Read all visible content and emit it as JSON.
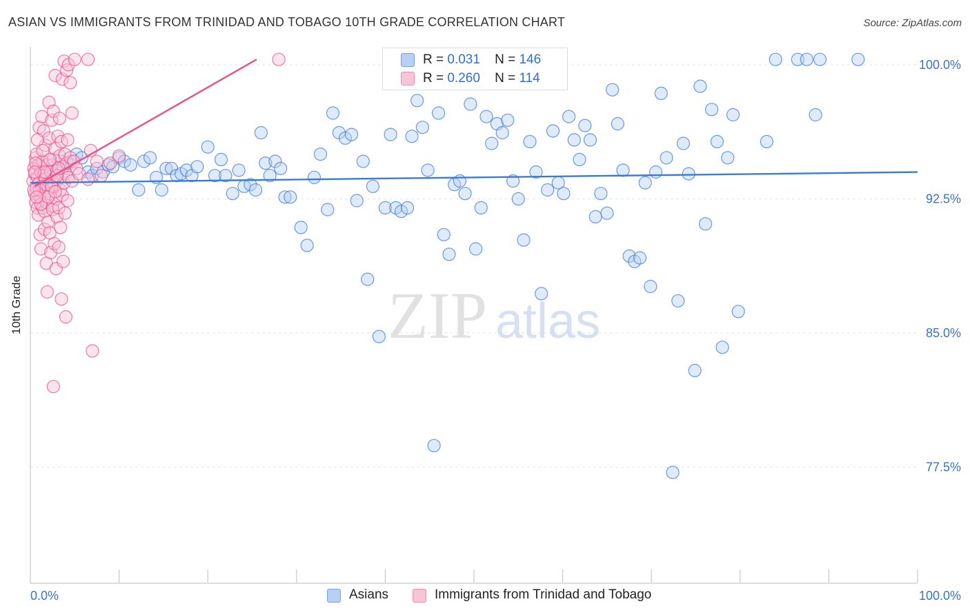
{
  "title": "ASIAN VS IMMIGRANTS FROM TRINIDAD AND TOBAGO 10TH GRADE CORRELATION CHART",
  "source": "Source: ZipAtlas.com",
  "watermark": {
    "zip": "ZIP",
    "atlas": "atlas"
  },
  "legend": {
    "r_label": "R =",
    "n_label": "N =",
    "items": [
      {
        "name": "Asians",
        "r": "0.031",
        "n": "146",
        "color": "#6fa3e8",
        "fill": "#b8d0f5"
      },
      {
        "name": "Immigrants from Trinidad and Tobago",
        "r": "0.260",
        "n": "114",
        "color": "#ef8fb0",
        "fill": "#f8c4d6"
      }
    ]
  },
  "chart_data": {
    "type": "scatter",
    "xlabel": "",
    "ylabel": "10th Grade",
    "xlim": [
      0,
      100
    ],
    "ylim": [
      71,
      101
    ],
    "x_tick_labels": [
      "0.0%",
      "100.0%"
    ],
    "y_ticks": [
      77.5,
      85.0,
      92.5,
      100.0
    ],
    "y_tick_labels": [
      "77.5%",
      "85.0%",
      "92.5%",
      "100.0%"
    ],
    "grid": true,
    "series": [
      {
        "name": "Asians",
        "color": "#3a7bd5",
        "fill": "#b8d0f5",
        "trend": {
          "x": [
            0,
            100
          ],
          "y": [
            93.4,
            94.0
          ]
        },
        "points": [
          [
            1.2,
            93.2
          ],
          [
            1.8,
            94.0
          ],
          [
            2.5,
            94.4
          ],
          [
            3.0,
            93.8
          ],
          [
            3.5,
            94.6
          ],
          [
            4.0,
            94.2
          ],
          [
            4.6,
            94.6
          ],
          [
            5.2,
            95.0
          ],
          [
            5.8,
            94.8
          ],
          [
            6.5,
            94.0
          ],
          [
            7.0,
            93.8
          ],
          [
            7.5,
            94.2
          ],
          [
            8.2,
            94.0
          ],
          [
            8.8,
            94.4
          ],
          [
            9.3,
            94.3
          ],
          [
            10.0,
            94.8
          ],
          [
            10.6,
            94.6
          ],
          [
            11.3,
            94.4
          ],
          [
            12.2,
            93.0
          ],
          [
            12.8,
            94.6
          ],
          [
            13.5,
            94.8
          ],
          [
            14.2,
            93.7
          ],
          [
            14.8,
            93.0
          ],
          [
            15.3,
            94.2
          ],
          [
            15.9,
            94.2
          ],
          [
            16.5,
            93.8
          ],
          [
            17.0,
            93.9
          ],
          [
            17.6,
            94.1
          ],
          [
            18.2,
            93.8
          ],
          [
            18.8,
            94.3
          ],
          [
            20.0,
            95.4
          ],
          [
            20.8,
            93.8
          ],
          [
            21.5,
            94.7
          ],
          [
            22.0,
            93.8
          ],
          [
            22.8,
            92.8
          ],
          [
            23.5,
            94.1
          ],
          [
            24.1,
            93.2
          ],
          [
            24.8,
            93.3
          ],
          [
            25.4,
            93.0
          ],
          [
            26.0,
            96.2
          ],
          [
            26.5,
            94.5
          ],
          [
            27.0,
            93.8
          ],
          [
            27.6,
            94.6
          ],
          [
            28.2,
            94.2
          ],
          [
            28.7,
            92.6
          ],
          [
            29.3,
            92.6
          ],
          [
            30.5,
            90.9
          ],
          [
            31.2,
            89.9
          ],
          [
            32.0,
            93.7
          ],
          [
            32.7,
            95.0
          ],
          [
            33.5,
            91.9
          ],
          [
            34.1,
            97.3
          ],
          [
            34.8,
            96.2
          ],
          [
            35.5,
            95.9
          ],
          [
            36.2,
            96.1
          ],
          [
            36.8,
            92.4
          ],
          [
            37.5,
            94.6
          ],
          [
            38.0,
            88.0
          ],
          [
            38.6,
            93.2
          ],
          [
            39.3,
            84.8
          ],
          [
            40.0,
            92.0
          ],
          [
            40.6,
            96.1
          ],
          [
            41.2,
            92.0
          ],
          [
            41.8,
            91.8
          ],
          [
            42.5,
            92.0
          ],
          [
            43.0,
            96.0
          ],
          [
            43.6,
            98.0
          ],
          [
            44.2,
            96.5
          ],
          [
            44.8,
            94.1
          ],
          [
            45.5,
            78.7
          ],
          [
            46.0,
            97.3
          ],
          [
            46.6,
            90.5
          ],
          [
            47.2,
            89.4
          ],
          [
            47.8,
            93.3
          ],
          [
            48.4,
            93.5
          ],
          [
            49.0,
            92.8
          ],
          [
            49.6,
            97.8
          ],
          [
            50.2,
            89.7
          ],
          [
            50.8,
            92.0
          ],
          [
            51.4,
            97.1
          ],
          [
            52.0,
            95.6
          ],
          [
            52.6,
            96.7
          ],
          [
            53.2,
            96.2
          ],
          [
            53.8,
            96.9
          ],
          [
            54.4,
            93.5
          ],
          [
            55.0,
            92.5
          ],
          [
            55.6,
            90.2
          ],
          [
            56.3,
            95.7
          ],
          [
            57.0,
            94.0
          ],
          [
            57.6,
            87.2
          ],
          [
            58.3,
            93.0
          ],
          [
            58.9,
            96.3
          ],
          [
            59.5,
            93.4
          ],
          [
            60.1,
            92.8
          ],
          [
            60.7,
            97.1
          ],
          [
            61.3,
            95.8
          ],
          [
            61.9,
            94.7
          ],
          [
            62.5,
            96.6
          ],
          [
            63.1,
            95.8
          ],
          [
            63.7,
            91.5
          ],
          [
            64.3,
            92.8
          ],
          [
            65.0,
            91.7
          ],
          [
            65.6,
            98.6
          ],
          [
            66.2,
            96.7
          ],
          [
            66.8,
            94.1
          ],
          [
            67.5,
            89.3
          ],
          [
            68.1,
            89.0
          ],
          [
            68.7,
            89.2
          ],
          [
            69.3,
            93.4
          ],
          [
            69.9,
            87.6
          ],
          [
            70.5,
            94.0
          ],
          [
            71.1,
            98.4
          ],
          [
            71.7,
            94.8
          ],
          [
            72.4,
            77.2
          ],
          [
            73.0,
            86.8
          ],
          [
            73.6,
            95.6
          ],
          [
            74.2,
            93.9
          ],
          [
            74.9,
            82.9
          ],
          [
            75.5,
            98.8
          ],
          [
            76.1,
            91.1
          ],
          [
            76.8,
            97.5
          ],
          [
            77.4,
            95.7
          ],
          [
            78.0,
            84.2
          ],
          [
            78.6,
            94.8
          ],
          [
            79.2,
            97.2
          ],
          [
            79.8,
            86.2
          ],
          [
            83.0,
            95.7
          ],
          [
            84.0,
            100.3
          ],
          [
            86.5,
            100.3
          ],
          [
            87.5,
            100.3
          ],
          [
            88.5,
            97.2
          ],
          [
            89.0,
            100.3
          ],
          [
            93.3,
            100.3
          ]
        ]
      },
      {
        "name": "Immigrants from Trinidad and Tobago",
        "color": "#e8508a",
        "fill": "#f8c4d6",
        "trend": {
          "x": [
            0.5,
            25.5
          ],
          "y": [
            93.2,
            100.3
          ]
        },
        "points": [
          [
            0.3,
            93.5
          ],
          [
            0.4,
            94.2
          ],
          [
            0.5,
            92.8
          ],
          [
            0.5,
            93.9
          ],
          [
            0.6,
            92.3
          ],
          [
            0.6,
            94.8
          ],
          [
            0.7,
            93.1
          ],
          [
            0.7,
            95.0
          ],
          [
            0.8,
            92.0
          ],
          [
            0.8,
            93.7
          ],
          [
            0.9,
            94.4
          ],
          [
            0.9,
            91.6
          ],
          [
            1.0,
            93.4
          ],
          [
            1.0,
            96.5
          ],
          [
            1.1,
            92.6
          ],
          [
            1.1,
            90.5
          ],
          [
            1.2,
            94.0
          ],
          [
            1.2,
            89.7
          ],
          [
            1.3,
            93.2
          ],
          [
            1.3,
            97.1
          ],
          [
            1.4,
            92.0
          ],
          [
            1.4,
            94.6
          ],
          [
            1.5,
            93.8
          ],
          [
            1.5,
            96.3
          ],
          [
            1.6,
            91.8
          ],
          [
            1.6,
            90.8
          ],
          [
            1.7,
            95.5
          ],
          [
            1.7,
            93.6
          ],
          [
            1.8,
            92.3
          ],
          [
            1.8,
            88.9
          ],
          [
            1.9,
            94.4
          ],
          [
            1.9,
            87.3
          ],
          [
            2.0,
            93.1
          ],
          [
            2.0,
            91.2
          ],
          [
            2.1,
            95.9
          ],
          [
            2.1,
            97.9
          ],
          [
            2.2,
            92.8
          ],
          [
            2.2,
            90.6
          ],
          [
            2.3,
            94.0
          ],
          [
            2.3,
            89.5
          ],
          [
            2.4,
            93.5
          ],
          [
            2.4,
            96.9
          ],
          [
            2.5,
            92.1
          ],
          [
            2.5,
            91.9
          ],
          [
            2.6,
            94.7
          ],
          [
            2.6,
            97.4
          ],
          [
            2.7,
            93.3
          ],
          [
            2.7,
            90.0
          ],
          [
            2.8,
            95.3
          ],
          [
            2.8,
            99.4
          ],
          [
            2.9,
            92.5
          ],
          [
            2.9,
            88.6
          ],
          [
            3.0,
            94.1
          ],
          [
            3.0,
            91.5
          ],
          [
            3.1,
            93.6
          ],
          [
            3.1,
            96.0
          ],
          [
            3.2,
            92.0
          ],
          [
            3.2,
            89.8
          ],
          [
            3.3,
            94.9
          ],
          [
            3.3,
            97.0
          ],
          [
            3.4,
            93.0
          ],
          [
            3.4,
            90.9
          ],
          [
            3.5,
            95.7
          ],
          [
            3.5,
            86.9
          ],
          [
            3.6,
            92.7
          ],
          [
            3.6,
            99.2
          ],
          [
            3.7,
            94.3
          ],
          [
            3.7,
            89.0
          ],
          [
            3.8,
            93.4
          ],
          [
            3.8,
            100.2
          ],
          [
            3.9,
            95.0
          ],
          [
            3.9,
            91.7
          ],
          [
            4.0,
            93.9
          ],
          [
            4.0,
            85.9
          ],
          [
            4.1,
            94.5
          ],
          [
            4.1,
            99.7
          ],
          [
            4.2,
            92.4
          ],
          [
            4.2,
            95.8
          ],
          [
            4.3,
            93.7
          ],
          [
            4.3,
            100.0
          ],
          [
            4.5,
            94.8
          ],
          [
            4.5,
            99.0
          ],
          [
            4.7,
            93.5
          ],
          [
            4.7,
            97.3
          ],
          [
            4.9,
            94.6
          ],
          [
            5.0,
            100.3
          ],
          [
            5.2,
            94.2
          ],
          [
            5.5,
            93.9
          ],
          [
            6.5,
            93.6
          ],
          [
            6.5,
            100.3
          ],
          [
            6.8,
            95.2
          ],
          [
            7.0,
            84.0
          ],
          [
            7.5,
            94.6
          ],
          [
            8.0,
            93.8
          ],
          [
            9.0,
            94.5
          ],
          [
            10.0,
            94.9
          ],
          [
            0.6,
            94.5
          ],
          [
            0.8,
            95.8
          ],
          [
            1.0,
            93.0
          ],
          [
            1.2,
            92.2
          ],
          [
            1.4,
            95.2
          ],
          [
            1.6,
            94.0
          ],
          [
            1.8,
            93.3
          ],
          [
            2.0,
            92.6
          ],
          [
            2.2,
            94.7
          ],
          [
            2.4,
            93.2
          ],
          [
            2.6,
            82.0
          ],
          [
            2.8,
            92.9
          ],
          [
            3.0,
            93.8
          ],
          [
            3.2,
            94.2
          ],
          [
            0.4,
            93.0
          ],
          [
            0.5,
            94.0
          ],
          [
            28.0,
            100.3
          ],
          [
            0.7,
            92.6
          ]
        ]
      }
    ]
  }
}
